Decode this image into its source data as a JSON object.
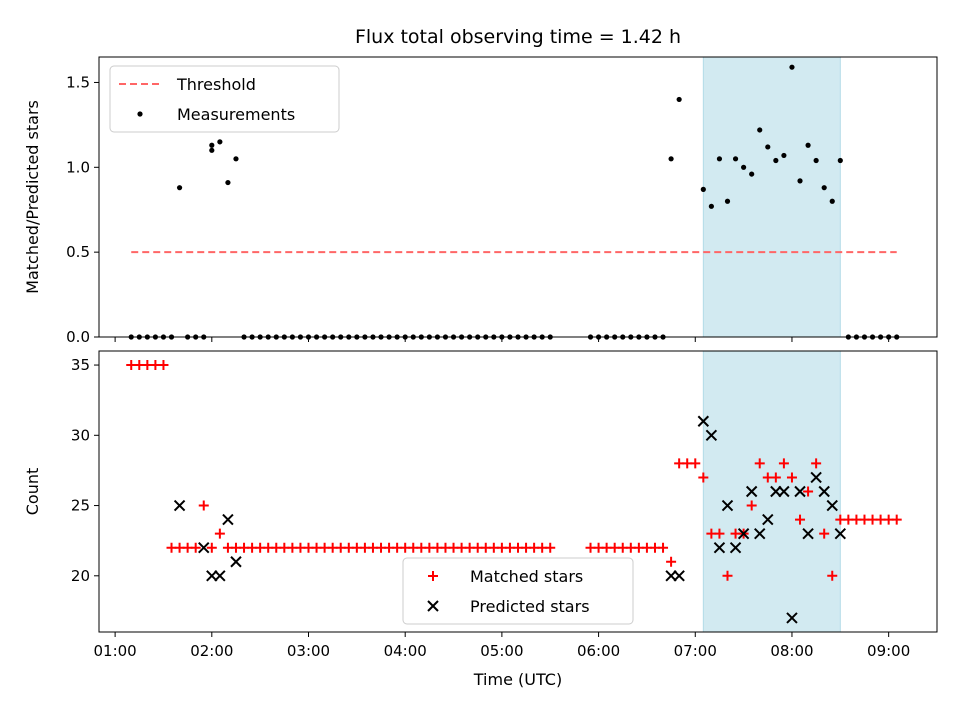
{
  "chart_data": [
    {
      "type": "scatter",
      "title": "Flux total observing time = 1.42 h",
      "xlabel": "",
      "ylabel": "Matched/Predicted stars",
      "xlim": [
        "00:50",
        "09:30"
      ],
      "ylim": [
        0,
        1.65
      ],
      "yticks": [
        "0.0",
        "0.5",
        "1.0",
        "1.5"
      ],
      "legend_position": "upper-left",
      "shaded_region": {
        "x_start": "07:05",
        "x_end": "08:30",
        "color": "#add8e6"
      },
      "series": [
        {
          "name": "Threshold",
          "style": "dashed-line",
          "color": "#ff6666",
          "points": [
            {
              "x": "01:10",
              "y": 0.5
            },
            {
              "x": "09:05",
              "y": 0.5
            }
          ]
        },
        {
          "name": "Measurements",
          "style": "dot",
          "color": "#000000",
          "points": [
            {
              "x": "01:10",
              "y": 0
            },
            {
              "x": "01:15",
              "y": 0
            },
            {
              "x": "01:20",
              "y": 0
            },
            {
              "x": "01:25",
              "y": 0
            },
            {
              "x": "01:30",
              "y": 0
            },
            {
              "x": "01:35",
              "y": 0
            },
            {
              "x": "01:40",
              "y": 0.88
            },
            {
              "x": "01:45",
              "y": 0
            },
            {
              "x": "01:50",
              "y": 0
            },
            {
              "x": "01:55",
              "y": 0
            },
            {
              "x": "02:00",
              "y": 1.13
            },
            {
              "x": "02:00",
              "y": 1.1
            },
            {
              "x": "02:05",
              "y": 1.15
            },
            {
              "x": "02:10",
              "y": 0.91
            },
            {
              "x": "02:15",
              "y": 1.05
            },
            {
              "x": "02:20",
              "y": 0
            },
            {
              "x": "02:25",
              "y": 0
            },
            {
              "x": "02:30",
              "y": 0
            },
            {
              "x": "02:35",
              "y": 0
            },
            {
              "x": "02:40",
              "y": 0
            },
            {
              "x": "02:45",
              "y": 0
            },
            {
              "x": "02:50",
              "y": 0
            },
            {
              "x": "02:55",
              "y": 0
            },
            {
              "x": "03:00",
              "y": 0
            },
            {
              "x": "03:05",
              "y": 0
            },
            {
              "x": "03:10",
              "y": 0
            },
            {
              "x": "03:15",
              "y": 0
            },
            {
              "x": "03:20",
              "y": 0
            },
            {
              "x": "03:25",
              "y": 0
            },
            {
              "x": "03:30",
              "y": 0
            },
            {
              "x": "03:35",
              "y": 0
            },
            {
              "x": "03:40",
              "y": 0
            },
            {
              "x": "03:45",
              "y": 0
            },
            {
              "x": "03:50",
              "y": 0
            },
            {
              "x": "03:55",
              "y": 0
            },
            {
              "x": "04:00",
              "y": 0
            },
            {
              "x": "04:05",
              "y": 0
            },
            {
              "x": "04:10",
              "y": 0
            },
            {
              "x": "04:15",
              "y": 0
            },
            {
              "x": "04:20",
              "y": 0
            },
            {
              "x": "04:25",
              "y": 0
            },
            {
              "x": "04:30",
              "y": 0
            },
            {
              "x": "04:35",
              "y": 0
            },
            {
              "x": "04:40",
              "y": 0
            },
            {
              "x": "04:45",
              "y": 0
            },
            {
              "x": "04:50",
              "y": 0
            },
            {
              "x": "04:55",
              "y": 0
            },
            {
              "x": "05:00",
              "y": 0
            },
            {
              "x": "05:05",
              "y": 0
            },
            {
              "x": "05:10",
              "y": 0
            },
            {
              "x": "05:15",
              "y": 0
            },
            {
              "x": "05:20",
              "y": 0
            },
            {
              "x": "05:25",
              "y": 0
            },
            {
              "x": "05:30",
              "y": 0
            },
            {
              "x": "05:55",
              "y": 0
            },
            {
              "x": "06:00",
              "y": 0
            },
            {
              "x": "06:05",
              "y": 0
            },
            {
              "x": "06:10",
              "y": 0
            },
            {
              "x": "06:15",
              "y": 0
            },
            {
              "x": "06:20",
              "y": 0
            },
            {
              "x": "06:25",
              "y": 0
            },
            {
              "x": "06:30",
              "y": 0
            },
            {
              "x": "06:35",
              "y": 0
            },
            {
              "x": "06:40",
              "y": 0
            },
            {
              "x": "06:45",
              "y": 1.05
            },
            {
              "x": "06:50",
              "y": 1.4
            },
            {
              "x": "07:05",
              "y": 0.87
            },
            {
              "x": "07:10",
              "y": 0.77
            },
            {
              "x": "07:15",
              "y": 1.05
            },
            {
              "x": "07:20",
              "y": 0.8
            },
            {
              "x": "07:25",
              "y": 1.05
            },
            {
              "x": "07:30",
              "y": 1.0
            },
            {
              "x": "07:35",
              "y": 0.96
            },
            {
              "x": "07:40",
              "y": 1.22
            },
            {
              "x": "07:45",
              "y": 1.12
            },
            {
              "x": "07:50",
              "y": 1.04
            },
            {
              "x": "07:55",
              "y": 1.07
            },
            {
              "x": "08:00",
              "y": 1.59
            },
            {
              "x": "08:05",
              "y": 0.92
            },
            {
              "x": "08:10",
              "y": 1.13
            },
            {
              "x": "08:15",
              "y": 1.04
            },
            {
              "x": "08:20",
              "y": 0.88
            },
            {
              "x": "08:25",
              "y": 0.8
            },
            {
              "x": "08:30",
              "y": 1.04
            },
            {
              "x": "08:35",
              "y": 0
            },
            {
              "x": "08:40",
              "y": 0
            },
            {
              "x": "08:45",
              "y": 0
            },
            {
              "x": "08:50",
              "y": 0
            },
            {
              "x": "08:55",
              "y": 0
            },
            {
              "x": "09:00",
              "y": 0
            },
            {
              "x": "09:05",
              "y": 0
            }
          ]
        }
      ]
    },
    {
      "type": "scatter",
      "title": "",
      "xlabel": "Time (UTC)",
      "ylabel": "Count",
      "xlim": [
        "00:50",
        "09:30"
      ],
      "ylim": [
        16,
        36
      ],
      "xticks": [
        "01:00",
        "02:00",
        "03:00",
        "04:00",
        "05:00",
        "06:00",
        "07:00",
        "08:00",
        "09:00"
      ],
      "yticks": [
        "20",
        "25",
        "30",
        "35"
      ],
      "legend_position": "lower-center",
      "shaded_region": {
        "x_start": "07:05",
        "x_end": "08:30",
        "color": "#add8e6"
      },
      "series": [
        {
          "name": "Matched stars",
          "style": "plus",
          "color": "#ff0000",
          "points": [
            {
              "x": "01:10",
              "y": 35
            },
            {
              "x": "01:15",
              "y": 35
            },
            {
              "x": "01:20",
              "y": 35
            },
            {
              "x": "01:25",
              "y": 35
            },
            {
              "x": "01:30",
              "y": 35
            },
            {
              "x": "01:35",
              "y": 22
            },
            {
              "x": "01:40",
              "y": 22
            },
            {
              "x": "01:45",
              "y": 22
            },
            {
              "x": "01:50",
              "y": 22
            },
            {
              "x": "01:55",
              "y": 25
            },
            {
              "x": "02:00",
              "y": 22
            },
            {
              "x": "02:05",
              "y": 23
            },
            {
              "x": "02:10",
              "y": 22
            },
            {
              "x": "02:15",
              "y": 22
            },
            {
              "x": "02:20",
              "y": 22
            },
            {
              "x": "02:25",
              "y": 22
            },
            {
              "x": "02:30",
              "y": 22
            },
            {
              "x": "02:35",
              "y": 22
            },
            {
              "x": "02:40",
              "y": 22
            },
            {
              "x": "02:45",
              "y": 22
            },
            {
              "x": "02:50",
              "y": 22
            },
            {
              "x": "02:55",
              "y": 22
            },
            {
              "x": "03:00",
              "y": 22
            },
            {
              "x": "03:05",
              "y": 22
            },
            {
              "x": "03:10",
              "y": 22
            },
            {
              "x": "03:15",
              "y": 22
            },
            {
              "x": "03:20",
              "y": 22
            },
            {
              "x": "03:25",
              "y": 22
            },
            {
              "x": "03:30",
              "y": 22
            },
            {
              "x": "03:35",
              "y": 22
            },
            {
              "x": "03:40",
              "y": 22
            },
            {
              "x": "03:45",
              "y": 22
            },
            {
              "x": "03:50",
              "y": 22
            },
            {
              "x": "03:55",
              "y": 22
            },
            {
              "x": "04:00",
              "y": 22
            },
            {
              "x": "04:05",
              "y": 22
            },
            {
              "x": "04:10",
              "y": 22
            },
            {
              "x": "04:15",
              "y": 22
            },
            {
              "x": "04:20",
              "y": 22
            },
            {
              "x": "04:25",
              "y": 22
            },
            {
              "x": "04:30",
              "y": 22
            },
            {
              "x": "04:35",
              "y": 22
            },
            {
              "x": "04:40",
              "y": 22
            },
            {
              "x": "04:45",
              "y": 22
            },
            {
              "x": "04:50",
              "y": 22
            },
            {
              "x": "04:55",
              "y": 22
            },
            {
              "x": "05:00",
              "y": 22
            },
            {
              "x": "05:05",
              "y": 22
            },
            {
              "x": "05:10",
              "y": 22
            },
            {
              "x": "05:15",
              "y": 22
            },
            {
              "x": "05:20",
              "y": 22
            },
            {
              "x": "05:25",
              "y": 22
            },
            {
              "x": "05:30",
              "y": 22
            },
            {
              "x": "05:55",
              "y": 22
            },
            {
              "x": "06:00",
              "y": 22
            },
            {
              "x": "06:05",
              "y": 22
            },
            {
              "x": "06:10",
              "y": 22
            },
            {
              "x": "06:15",
              "y": 22
            },
            {
              "x": "06:20",
              "y": 22
            },
            {
              "x": "06:25",
              "y": 22
            },
            {
              "x": "06:30",
              "y": 22
            },
            {
              "x": "06:35",
              "y": 22
            },
            {
              "x": "06:40",
              "y": 22
            },
            {
              "x": "06:45",
              "y": 21
            },
            {
              "x": "06:50",
              "y": 28
            },
            {
              "x": "06:55",
              "y": 28
            },
            {
              "x": "07:00",
              "y": 28
            },
            {
              "x": "07:05",
              "y": 27
            },
            {
              "x": "07:10",
              "y": 23
            },
            {
              "x": "07:15",
              "y": 23
            },
            {
              "x": "07:20",
              "y": 20
            },
            {
              "x": "07:25",
              "y": 23
            },
            {
              "x": "07:30",
              "y": 23
            },
            {
              "x": "07:35",
              "y": 25
            },
            {
              "x": "07:40",
              "y": 28
            },
            {
              "x": "07:45",
              "y": 27
            },
            {
              "x": "07:50",
              "y": 27
            },
            {
              "x": "07:55",
              "y": 28
            },
            {
              "x": "08:00",
              "y": 27
            },
            {
              "x": "08:05",
              "y": 24
            },
            {
              "x": "08:10",
              "y": 26
            },
            {
              "x": "08:15",
              "y": 28
            },
            {
              "x": "08:20",
              "y": 23
            },
            {
              "x": "08:25",
              "y": 20
            },
            {
              "x": "08:30",
              "y": 24
            },
            {
              "x": "08:35",
              "y": 24
            },
            {
              "x": "08:40",
              "y": 24
            },
            {
              "x": "08:45",
              "y": 24
            },
            {
              "x": "08:50",
              "y": 24
            },
            {
              "x": "08:55",
              "y": 24
            },
            {
              "x": "09:00",
              "y": 24
            },
            {
              "x": "09:05",
              "y": 24
            }
          ]
        },
        {
          "name": "Predicted stars",
          "style": "x",
          "color": "#000000",
          "points": [
            {
              "x": "01:40",
              "y": 25
            },
            {
              "x": "01:55",
              "y": 22
            },
            {
              "x": "02:00",
              "y": 20
            },
            {
              "x": "02:05",
              "y": 20
            },
            {
              "x": "02:10",
              "y": 24
            },
            {
              "x": "02:15",
              "y": 21
            },
            {
              "x": "06:45",
              "y": 20
            },
            {
              "x": "06:50",
              "y": 20
            },
            {
              "x": "07:05",
              "y": 31
            },
            {
              "x": "07:10",
              "y": 30
            },
            {
              "x": "07:15",
              "y": 22
            },
            {
              "x": "07:20",
              "y": 25
            },
            {
              "x": "07:25",
              "y": 22
            },
            {
              "x": "07:30",
              "y": 23
            },
            {
              "x": "07:35",
              "y": 26
            },
            {
              "x": "07:40",
              "y": 23
            },
            {
              "x": "07:45",
              "y": 24
            },
            {
              "x": "07:50",
              "y": 26
            },
            {
              "x": "07:55",
              "y": 26
            },
            {
              "x": "08:00",
              "y": 17
            },
            {
              "x": "08:05",
              "y": 26
            },
            {
              "x": "08:10",
              "y": 23
            },
            {
              "x": "08:15",
              "y": 27
            },
            {
              "x": "08:20",
              "y": 26
            },
            {
              "x": "08:25",
              "y": 25
            },
            {
              "x": "08:30",
              "y": 23
            }
          ]
        }
      ]
    }
  ]
}
